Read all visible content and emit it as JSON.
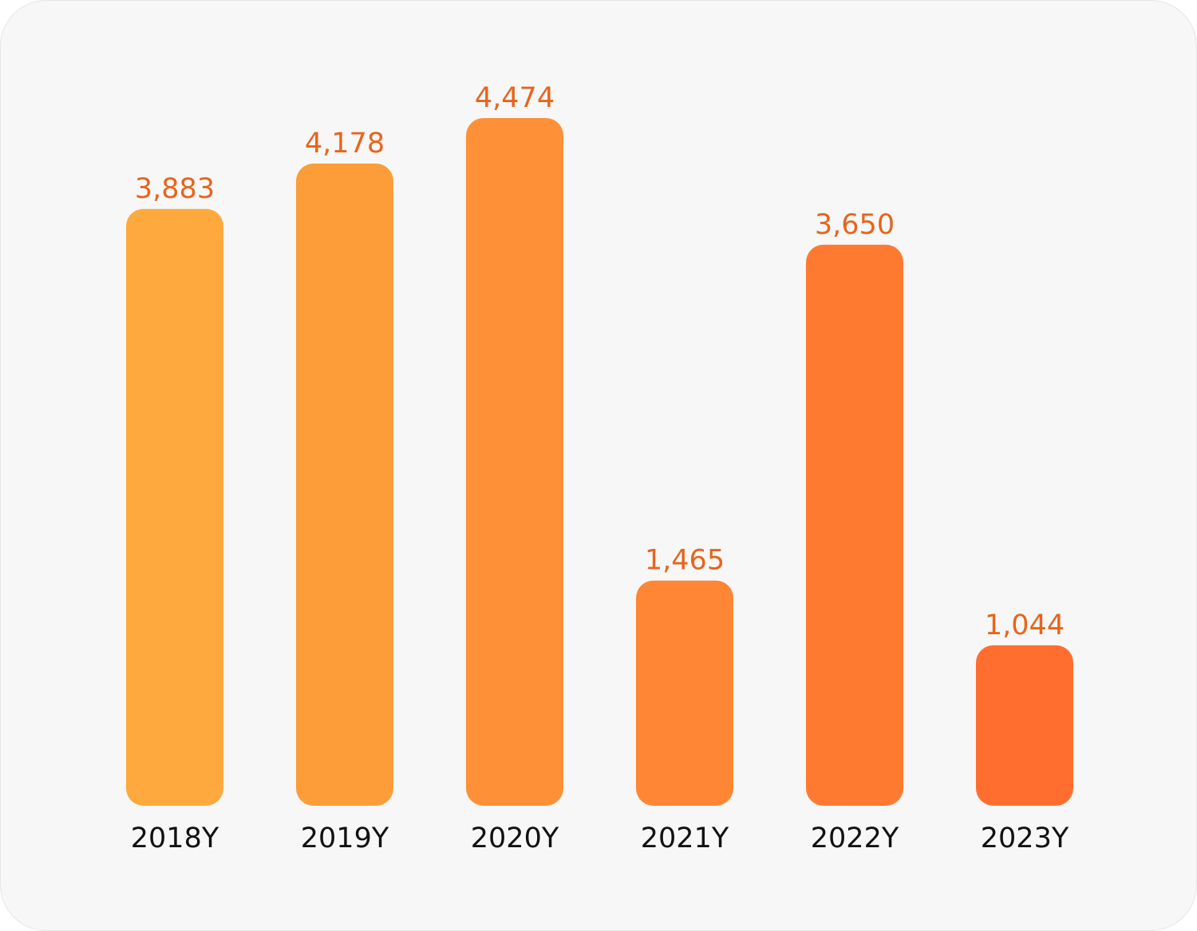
{
  "chart_data": {
    "type": "bar",
    "categories": [
      "2018Y",
      "2019Y",
      "2020Y",
      "2021Y",
      "2022Y",
      "2023Y"
    ],
    "values": [
      3883,
      4178,
      4474,
      1465,
      3650,
      1044
    ],
    "value_labels": [
      "3,883",
      "4,178",
      "4,474",
      "1,465",
      "3,650",
      "1,044"
    ],
    "ylim": [
      0,
      4474
    ],
    "grid": false,
    "legend": "none",
    "colors": {
      "bar_start": "#fda93d",
      "bar_end": "#ff6e2e",
      "value_label": "#e8641c",
      "category_label": "#111111",
      "background": "#f7f7f7"
    }
  }
}
